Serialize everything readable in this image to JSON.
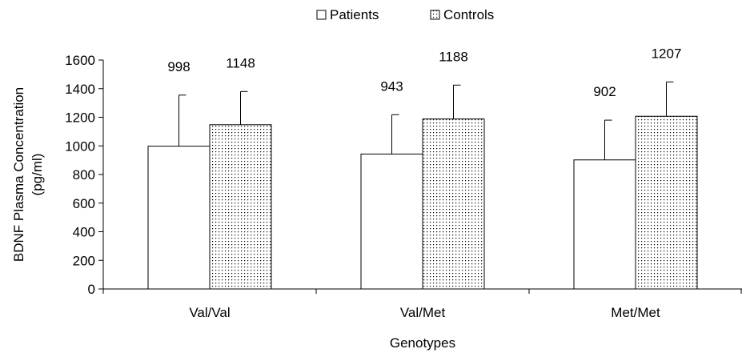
{
  "chart_data": {
    "type": "bar",
    "title": "",
    "xlabel": "Genotypes",
    "ylabel_lines": [
      "BDNF Plasma Concentration",
      "(pg/ml)"
    ],
    "categories": [
      "Val/Val",
      "Val/Met",
      "Met/Met"
    ],
    "ylim": [
      0,
      1600
    ],
    "yticks": [
      0,
      200,
      400,
      600,
      800,
      1000,
      1200,
      1400,
      1600
    ],
    "ytick_labels": [
      "0",
      "200",
      "400",
      "600",
      "800",
      "1000",
      "1200",
      "1400",
      "1600"
    ],
    "grid": false,
    "legend_position": "top-center",
    "series": [
      {
        "name": "Patients",
        "fill": "#ffffff",
        "pattern": "none",
        "values": [
          998,
          943,
          902
        ],
        "error_upper": [
          1355,
          1218,
          1180
        ],
        "data_labels": [
          "998",
          "943",
          "902"
        ]
      },
      {
        "name": "Controls",
        "fill": "#ffffff",
        "pattern": "dots",
        "values": [
          1148,
          1188,
          1207
        ],
        "error_upper": [
          1380,
          1425,
          1447
        ],
        "data_labels": [
          "1148",
          "1188",
          "1207"
        ]
      }
    ],
    "colors": {
      "stroke": "#000000",
      "dot": "#000000"
    }
  }
}
